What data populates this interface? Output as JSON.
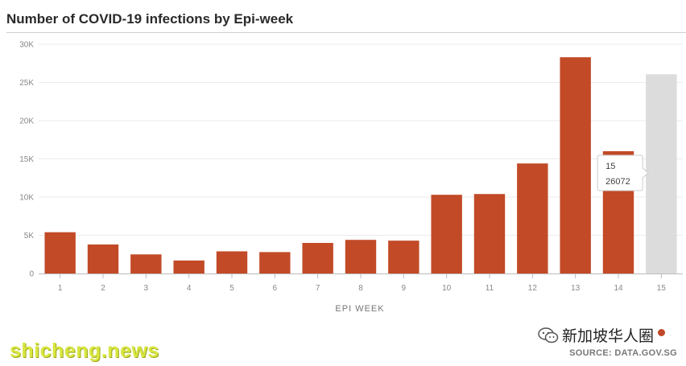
{
  "chart_data": {
    "type": "bar",
    "title": "Number of COVID-19 infections by Epi-week",
    "xlabel": "EPI WEEK",
    "ylabel": "",
    "categories": [
      "1",
      "2",
      "3",
      "4",
      "5",
      "6",
      "7",
      "8",
      "9",
      "10",
      "11",
      "12",
      "13",
      "14",
      "15"
    ],
    "values": [
      5400,
      3800,
      2500,
      1700,
      2900,
      2800,
      4000,
      4400,
      4300,
      10300,
      10400,
      14400,
      28300,
      16000,
      26072
    ],
    "highlight_index": 14,
    "ylim": [
      0,
      30000
    ],
    "yticks": [
      0,
      5000,
      10000,
      15000,
      20000,
      25000,
      30000
    ],
    "ytick_labels": [
      "0",
      "5K",
      "10K",
      "15K",
      "20K",
      "25K",
      "30K"
    ],
    "grid": true,
    "legend": "none",
    "tooltip": {
      "category": "15",
      "value": "26072"
    },
    "colors": {
      "bar": "#c24a27",
      "highlight": "#dcdcdc",
      "grid": "#ebebeb",
      "axis": "#bbbbbb",
      "tick": "#888888"
    }
  },
  "footer": {
    "watermark": "shicheng.news",
    "brand": "新加坡华人圈",
    "source": "SOURCE: DATA.GOV.SG"
  }
}
